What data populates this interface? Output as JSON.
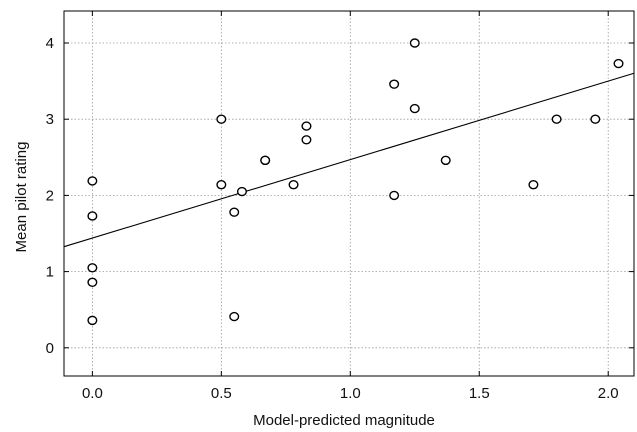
{
  "chart_data": {
    "type": "scatter",
    "title": "",
    "xlabel": "Model-predicted magnitude",
    "ylabel": "Mean pilot rating",
    "xlim": [
      -0.11,
      2.1
    ],
    "ylim": [
      -0.37,
      4.42
    ],
    "x_ticks": [
      0.0,
      0.5,
      1.0,
      1.5,
      2.0
    ],
    "x_tick_labels": [
      "0.0",
      "0.5",
      "1.0",
      "1.5",
      "2.0"
    ],
    "y_ticks": [
      0,
      1,
      2,
      3,
      4
    ],
    "y_tick_labels": [
      "0",
      "1",
      "2",
      "3",
      "4"
    ],
    "grid": true,
    "legend": "none",
    "marker": "open-circle",
    "points": [
      {
        "x": 0.0,
        "y": 2.19
      },
      {
        "x": 0.0,
        "y": 1.73
      },
      {
        "x": 0.0,
        "y": 1.05
      },
      {
        "x": 0.0,
        "y": 0.86
      },
      {
        "x": 0.0,
        "y": 0.36
      },
      {
        "x": 0.5,
        "y": 3.0
      },
      {
        "x": 0.5,
        "y": 2.14
      },
      {
        "x": 0.55,
        "y": 1.78
      },
      {
        "x": 0.55,
        "y": 0.41
      },
      {
        "x": 0.58,
        "y": 2.05
      },
      {
        "x": 0.67,
        "y": 2.46
      },
      {
        "x": 0.67,
        "y": 2.46
      },
      {
        "x": 0.78,
        "y": 2.14
      },
      {
        "x": 0.83,
        "y": 2.91
      },
      {
        "x": 0.83,
        "y": 2.73
      },
      {
        "x": 1.17,
        "y": 3.46
      },
      {
        "x": 1.17,
        "y": 2.0
      },
      {
        "x": 1.25,
        "y": 4.0
      },
      {
        "x": 1.25,
        "y": 3.14
      },
      {
        "x": 1.37,
        "y": 2.46
      },
      {
        "x": 1.71,
        "y": 2.14
      },
      {
        "x": 1.8,
        "y": 3.0
      },
      {
        "x": 1.95,
        "y": 3.0
      },
      {
        "x": 2.04,
        "y": 3.73
      }
    ],
    "fit_line": {
      "intercept": 1.44,
      "slope": 1.03
    }
  }
}
